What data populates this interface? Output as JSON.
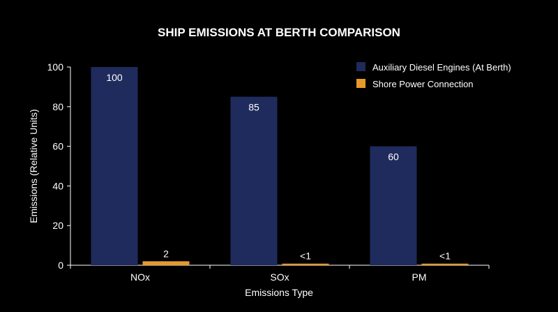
{
  "chart_data": {
    "type": "bar",
    "title": "SHIP EMISSIONS AT BERTH COMPARISON",
    "xlabel": "Emissions Type",
    "ylabel": "Emissions (Relative Units)",
    "categories": [
      "NOx",
      "SOx",
      "PM"
    ],
    "ylim": [
      0,
      100
    ],
    "yticks": [
      0,
      20,
      40,
      60,
      80,
      100
    ],
    "grid": false,
    "legend_position": "top-right",
    "series": [
      {
        "name": "Auxiliary Diesel Engines (At Berth)",
        "color": "#1f2b5c",
        "values": [
          100,
          85,
          60
        ],
        "labels": [
          "100",
          "85",
          "60"
        ]
      },
      {
        "name": "Shore Power Connection",
        "color": "#e79a2c",
        "values": [
          2,
          0.8,
          0.8
        ],
        "labels": [
          "2",
          "<1",
          "<1"
        ]
      }
    ]
  }
}
